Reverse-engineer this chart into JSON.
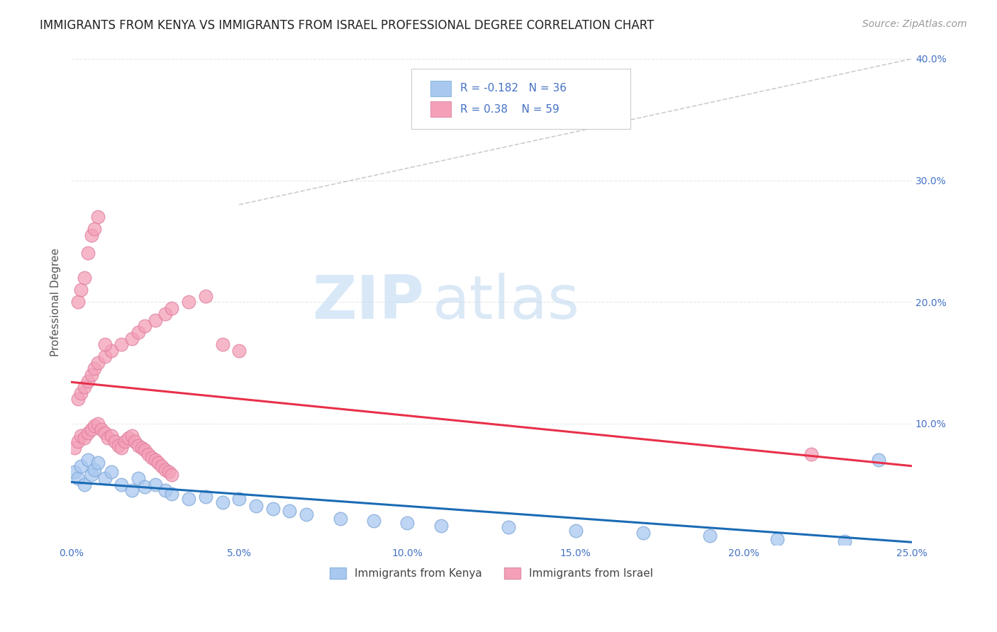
{
  "title": "IMMIGRANTS FROM KENYA VS IMMIGRANTS FROM ISRAEL PROFESSIONAL DEGREE CORRELATION CHART",
  "source_text": "Source: ZipAtlas.com",
  "ylabel": "Professional Degree",
  "legend_bottom_labels": [
    "Immigrants from Kenya",
    "Immigrants from Israel"
  ],
  "r_kenya": -0.182,
  "n_kenya": 36,
  "r_israel": 0.38,
  "n_israel": 59,
  "color_kenya": "#a8c8f0",
  "color_israel": "#f4a0b8",
  "line_color_kenya": "#1a6bb5",
  "line_color_israel": "#e8304a",
  "xlim": [
    0.0,
    0.25
  ],
  "ylim": [
    0.0,
    0.4
  ],
  "xtick_labels": [
    "0.0%",
    "5.0%",
    "10.0%",
    "15.0%",
    "20.0%",
    "25.0%"
  ],
  "xtick_values": [
    0.0,
    0.05,
    0.1,
    0.15,
    0.2,
    0.25
  ],
  "ytick_labels": [
    "10.0%",
    "20.0%",
    "30.0%",
    "40.0%"
  ],
  "ytick_values": [
    0.1,
    0.2,
    0.3,
    0.4
  ],
  "title_color": "#1a1a2e",
  "axis_color": "#4472c4",
  "watermark_zip": "ZIP",
  "watermark_atlas": "atlas",
  "background_color": "#ffffff",
  "kenya_scatter_x": [
    0.001,
    0.002,
    0.003,
    0.004,
    0.005,
    0.006,
    0.007,
    0.008,
    0.01,
    0.012,
    0.015,
    0.018,
    0.02,
    0.022,
    0.025,
    0.028,
    0.03,
    0.035,
    0.04,
    0.045,
    0.05,
    0.055,
    0.06,
    0.065,
    0.07,
    0.08,
    0.09,
    0.1,
    0.11,
    0.13,
    0.15,
    0.17,
    0.19,
    0.21,
    0.23,
    0.24
  ],
  "kenya_scatter_y": [
    0.06,
    0.055,
    0.065,
    0.05,
    0.07,
    0.058,
    0.062,
    0.068,
    0.055,
    0.06,
    0.05,
    0.045,
    0.055,
    0.048,
    0.05,
    0.045,
    0.042,
    0.038,
    0.04,
    0.035,
    0.038,
    0.032,
    0.03,
    0.028,
    0.025,
    0.022,
    0.02,
    0.018,
    0.016,
    0.015,
    0.012,
    0.01,
    0.008,
    0.005,
    0.003,
    0.07
  ],
  "israel_scatter_x": [
    0.001,
    0.002,
    0.003,
    0.004,
    0.005,
    0.006,
    0.007,
    0.008,
    0.009,
    0.01,
    0.011,
    0.012,
    0.013,
    0.014,
    0.015,
    0.016,
    0.017,
    0.018,
    0.019,
    0.02,
    0.021,
    0.022,
    0.023,
    0.024,
    0.025,
    0.026,
    0.027,
    0.028,
    0.029,
    0.03,
    0.002,
    0.003,
    0.004,
    0.005,
    0.006,
    0.007,
    0.008,
    0.01,
    0.012,
    0.015,
    0.018,
    0.02,
    0.022,
    0.025,
    0.028,
    0.03,
    0.035,
    0.04,
    0.045,
    0.05,
    0.002,
    0.003,
    0.004,
    0.005,
    0.006,
    0.007,
    0.008,
    0.01,
    0.22
  ],
  "israel_scatter_y": [
    0.08,
    0.085,
    0.09,
    0.088,
    0.092,
    0.095,
    0.098,
    0.1,
    0.095,
    0.092,
    0.088,
    0.09,
    0.085,
    0.082,
    0.08,
    0.085,
    0.088,
    0.09,
    0.085,
    0.082,
    0.08,
    0.078,
    0.075,
    0.072,
    0.07,
    0.068,
    0.065,
    0.062,
    0.06,
    0.058,
    0.12,
    0.125,
    0.13,
    0.135,
    0.14,
    0.145,
    0.15,
    0.155,
    0.16,
    0.165,
    0.17,
    0.175,
    0.18,
    0.185,
    0.19,
    0.195,
    0.2,
    0.205,
    0.165,
    0.16,
    0.2,
    0.21,
    0.22,
    0.24,
    0.255,
    0.26,
    0.27,
    0.165,
    0.075
  ],
  "dashed_line_color": "#cccccc",
  "grid_color": "#e8e8e8",
  "title_fontsize": 12,
  "axis_label_fontsize": 11,
  "tick_fontsize": 10,
  "legend_fontsize": 11,
  "source_fontsize": 10
}
